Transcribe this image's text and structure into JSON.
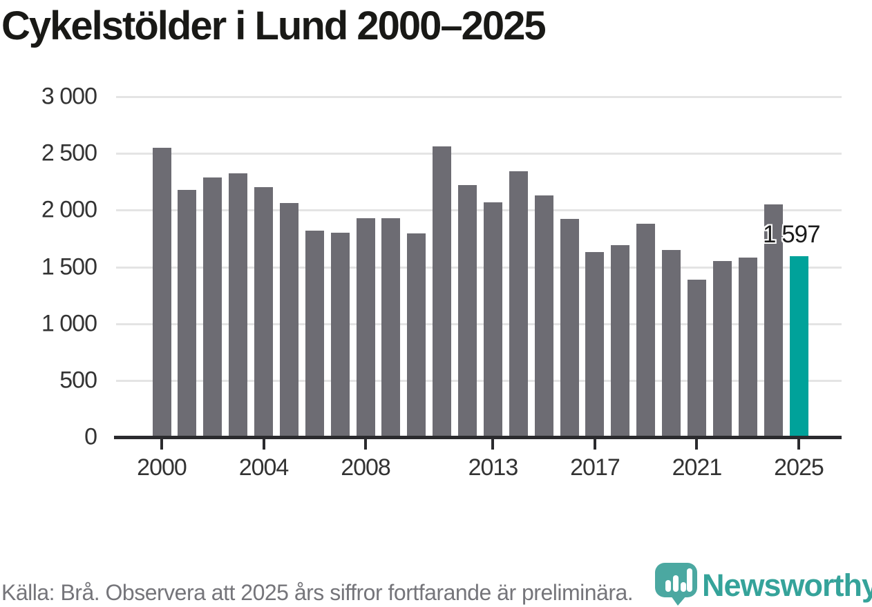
{
  "title": "Cykelstölder i Lund 2000–2025",
  "chart_data": {
    "type": "bar",
    "title": "Cykelstölder i Lund 2000–2025",
    "categories": [
      2000,
      2001,
      2002,
      2003,
      2004,
      2005,
      2006,
      2007,
      2008,
      2009,
      2010,
      2011,
      2012,
      2013,
      2014,
      2015,
      2016,
      2017,
      2018,
      2019,
      2020,
      2021,
      2022,
      2023,
      2024,
      2025
    ],
    "values": [
      2550,
      2180,
      2290,
      2325,
      2200,
      2060,
      1820,
      1800,
      1930,
      1930,
      1795,
      2560,
      2220,
      2070,
      2340,
      2130,
      1920,
      1630,
      1690,
      1880,
      1650,
      1390,
      1550,
      1585,
      2050,
      1597
    ],
    "ylim": [
      0,
      3000
    ],
    "y_ticks": [
      0,
      500,
      1000,
      1500,
      2000,
      2500,
      3000
    ],
    "y_tick_labels": [
      "0",
      "500",
      "1 000",
      "1 500",
      "2 000",
      "2 500",
      "3 000"
    ],
    "x_tick_labels": [
      "2000",
      "2004",
      "2008",
      "2013",
      "2017",
      "2021",
      "2025"
    ],
    "grid": "horizontal",
    "legend": "none",
    "bar_color": "#6d6c73",
    "highlight_year": 2025,
    "highlight_color": "#00a29a",
    "highlight_value_label": "1 597"
  },
  "footer": {
    "source": "Källa: Brå. Observera att 2025 års siffror fortfarande är preliminära."
  },
  "branding": {
    "name": "Newsworthy",
    "icon": "newsworthy-pin-barchart-icon",
    "icon_color": "#4ba8a1",
    "wordmark_color": "#35a39a"
  }
}
